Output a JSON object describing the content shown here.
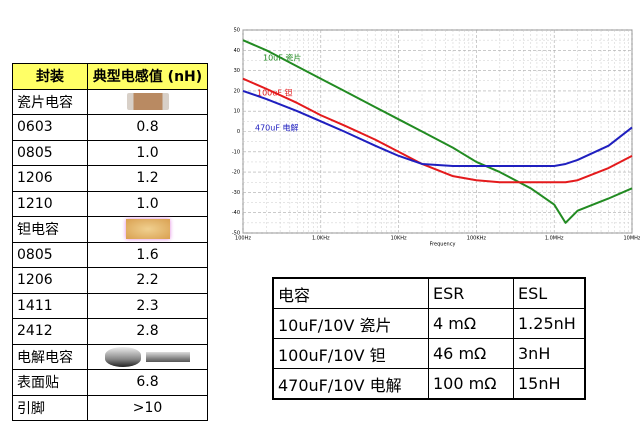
{
  "inductance_table": {
    "header": [
      "封装",
      "典型电感值 (nH)"
    ],
    "rows": [
      [
        "瓷片电容"
      ],
      [
        "0603",
        "0.8"
      ],
      [
        "0805",
        "1.0"
      ],
      [
        "1206",
        "1.2"
      ],
      [
        "1210",
        "1.0"
      ],
      [
        "钽电容"
      ],
      [
        "0805",
        "1.6"
      ],
      [
        "1206",
        "2.2"
      ],
      [
        "1411",
        "2.3"
      ],
      [
        "2412",
        "2.8"
      ],
      [
        "电解电容"
      ],
      [
        "表面贴",
        "6.8"
      ],
      [
        "引脚",
        ">10"
      ]
    ]
  },
  "chart_data": {
    "type": "line",
    "xlabel": "Frequency",
    "x": [
      100,
      200,
      500,
      1000,
      2000,
      5000,
      10000,
      20000,
      50000,
      100000,
      200000,
      500000,
      1000000,
      1400000,
      2000000,
      5000000,
      10000000
    ],
    "series": [
      {
        "name": "10uF 瓷片",
        "color": "#228b22",
        "values": [
          45,
          40,
          32,
          26,
          20,
          12,
          6,
          0,
          -8,
          -15,
          -20,
          -28,
          -36,
          -45,
          -39,
          -33,
          -28
        ]
      },
      {
        "name": "100uF 钽",
        "color": "#e41a1c",
        "values": [
          26,
          21,
          14,
          8,
          3,
          -4,
          -10,
          -16,
          -22,
          -24,
          -25,
          -25,
          -25,
          -25,
          -24,
          -18,
          -12
        ]
      },
      {
        "name": "470uF 电解",
        "color": "#1f1fbf",
        "values": [
          20,
          16,
          10,
          5,
          0,
          -7,
          -12,
          -16,
          -17,
          -17,
          -17,
          -17,
          -17,
          -16,
          -14,
          -7,
          2
        ]
      }
    ],
    "xlim": [
      100,
      10000000
    ],
    "xticks": [
      {
        "value": 100,
        "label": "100Hz"
      },
      {
        "value": 1000,
        "label": "1.0KHz"
      },
      {
        "value": 10000,
        "label": "10KHz"
      },
      {
        "value": 100000,
        "label": "100KHz"
      },
      {
        "value": 1000000,
        "label": "1.0MHz"
      },
      {
        "value": 10000000,
        "label": "10MHz"
      }
    ],
    "ylim": [
      -50,
      50
    ],
    "yticks": [
      -50,
      -40,
      -30,
      -20,
      -10,
      0,
      10,
      20,
      30,
      40,
      50
    ],
    "xscale": "log",
    "grid": true
  },
  "esr_table": {
    "header": [
      "电容",
      "ESR",
      "ESL"
    ],
    "rows": [
      [
        "10uF/10V 瓷片",
        "4 mΩ",
        "1.25nH"
      ],
      [
        "100uF/10V 钽",
        "46 mΩ",
        "3nH"
      ],
      [
        "470uF/10V 电解",
        "100 mΩ",
        "15nH"
      ]
    ]
  }
}
